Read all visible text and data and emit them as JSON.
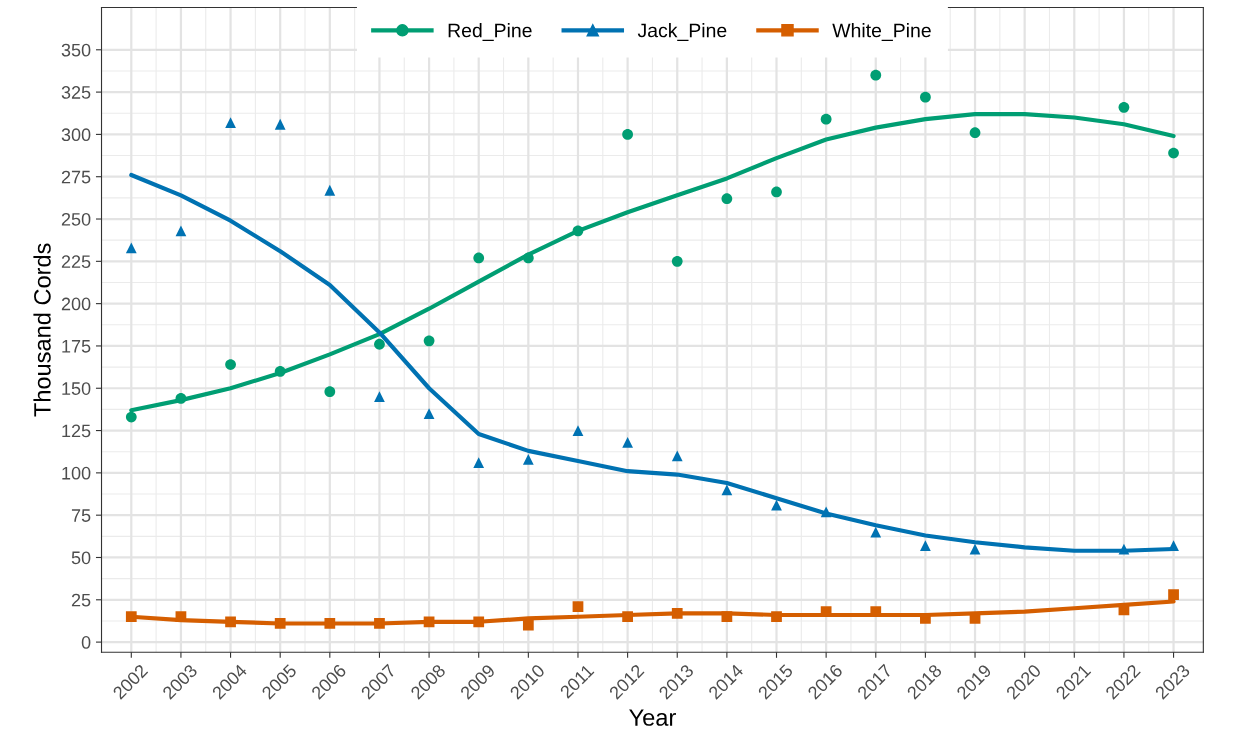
{
  "chart_data": {
    "type": "scatter",
    "xlabel": "Year",
    "ylabel": "Thousand Cords",
    "xlim": [
      2001.4,
      2023.6
    ],
    "xticks": [
      2002,
      2003,
      2004,
      2005,
      2006,
      2007,
      2008,
      2009,
      2010,
      2011,
      2012,
      2013,
      2014,
      2015,
      2016,
      2017,
      2018,
      2019,
      2020,
      2021,
      2022,
      2023
    ],
    "ylim": [
      -6,
      375
    ],
    "yticks": [
      0,
      25,
      50,
      75,
      100,
      125,
      150,
      175,
      200,
      225,
      250,
      275,
      300,
      325,
      350
    ],
    "grid": true,
    "legend": "top",
    "series": [
      {
        "name": "Red_Pine",
        "color": "#009e73",
        "marker": "circle",
        "x": [
          2002,
          2003,
          2004,
          2005,
          2006,
          2007,
          2008,
          2009,
          2010,
          2011,
          2012,
          2013,
          2014,
          2015,
          2016,
          2017,
          2018,
          2019,
          2022,
          2023
        ],
        "values": [
          133,
          144,
          164,
          160,
          148,
          176,
          178,
          227,
          227,
          243,
          300,
          225,
          262,
          266,
          309,
          335,
          322,
          301,
          316,
          289
        ]
      },
      {
        "name": "Jack_Pine",
        "color": "#0072b2",
        "marker": "triangle",
        "x": [
          2002,
          2003,
          2004,
          2005,
          2006,
          2007,
          2008,
          2009,
          2010,
          2011,
          2012,
          2013,
          2014,
          2015,
          2016,
          2017,
          2018,
          2019,
          2022,
          2023
        ],
        "values": [
          233,
          243,
          307,
          306,
          267,
          145,
          135,
          106,
          108,
          125,
          118,
          110,
          90,
          81,
          77,
          65,
          57,
          55,
          55,
          57
        ]
      },
      {
        "name": "White_Pine",
        "color": "#d55e00",
        "marker": "square",
        "x": [
          2002,
          2003,
          2004,
          2005,
          2006,
          2007,
          2008,
          2009,
          2010,
          2011,
          2012,
          2013,
          2014,
          2015,
          2016,
          2017,
          2018,
          2019,
          2022,
          2023
        ],
        "values": [
          15,
          15,
          12,
          11,
          11,
          11,
          12,
          12,
          10,
          21,
          15,
          17,
          15,
          15,
          18,
          18,
          14,
          14,
          19,
          28
        ]
      },
      {
        "type": "line",
        "color": "#009e73",
        "x": [
          2002,
          2003,
          2004,
          2005,
          2006,
          2007,
          2008,
          2009,
          2010,
          2011,
          2012,
          2013,
          2014,
          2015,
          2016,
          2017,
          2018,
          2019,
          2020,
          2021,
          2022,
          2023
        ],
        "values": [
          137,
          143,
          150,
          159,
          170,
          182,
          197,
          213,
          229,
          243,
          254,
          264,
          274,
          286,
          297,
          304,
          309,
          312,
          312,
          310,
          306,
          299
        ]
      },
      {
        "type": "line",
        "color": "#0072b2",
        "x": [
          2002,
          2003,
          2004,
          2005,
          2006,
          2007,
          2008,
          2009,
          2010,
          2011,
          2012,
          2013,
          2014,
          2015,
          2016,
          2017,
          2018,
          2019,
          2020,
          2021,
          2022,
          2023
        ],
        "values": [
          276,
          264,
          249,
          231,
          211,
          183,
          150,
          123,
          113,
          107,
          101,
          99,
          94,
          85,
          76,
          69,
          63,
          59,
          56,
          54,
          54,
          55
        ]
      },
      {
        "type": "line",
        "color": "#d55e00",
        "x": [
          2002,
          2003,
          2004,
          2005,
          2006,
          2007,
          2008,
          2009,
          2010,
          2011,
          2012,
          2013,
          2014,
          2015,
          2016,
          2017,
          2018,
          2019,
          2020,
          2021,
          2022,
          2023
        ],
        "values": [
          15,
          13,
          12,
          11,
          11,
          11,
          12,
          12,
          14,
          15,
          16,
          17,
          17,
          16,
          16,
          16,
          16,
          17,
          18,
          20,
          22,
          24
        ]
      }
    ]
  }
}
